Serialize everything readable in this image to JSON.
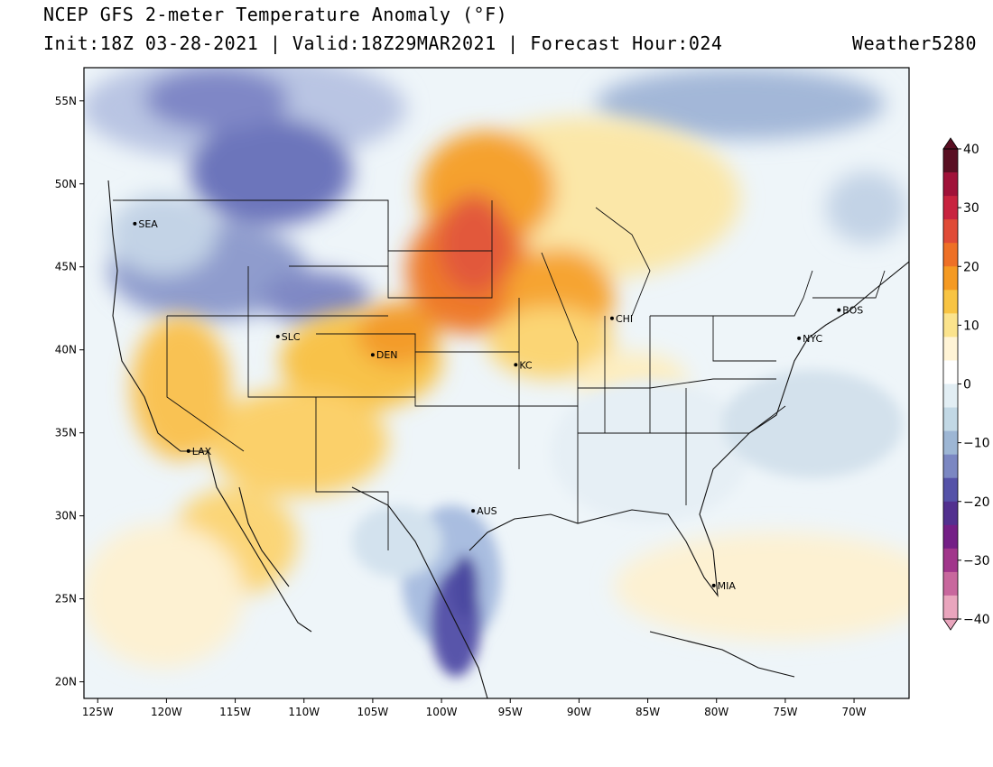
{
  "header": {
    "title": "NCEP GFS 2-meter Temperature Anomaly (°F)",
    "subtitle": "Init:18Z 03-28-2021 | Valid:18Z29MAR2021 | Forecast Hour:024",
    "brand": "Weather5280"
  },
  "map": {
    "lon_range": [
      -126,
      -66
    ],
    "lat_range": [
      19,
      57
    ],
    "lon_ticks": [
      "125W",
      "120W",
      "115W",
      "110W",
      "105W",
      "100W",
      "95W",
      "90W",
      "85W",
      "80W",
      "75W",
      "70W"
    ],
    "lat_ticks": [
      "55N",
      "50N",
      "45N",
      "40N",
      "35N",
      "30N",
      "25N",
      "20N"
    ],
    "cities": [
      {
        "label": "SEA",
        "lon": -122.3,
        "lat": 47.6
      },
      {
        "label": "SLC",
        "lon": -111.9,
        "lat": 40.8
      },
      {
        "label": "DEN",
        "lon": -105.0,
        "lat": 39.7
      },
      {
        "label": "LAX",
        "lon": -118.4,
        "lat": 33.9
      },
      {
        "label": "KC",
        "lon": -94.6,
        "lat": 39.1
      },
      {
        "label": "CHI",
        "lon": -87.6,
        "lat": 41.9
      },
      {
        "label": "NYC",
        "lon": -74.0,
        "lat": 40.7
      },
      {
        "label": "BOS",
        "lon": -71.1,
        "lat": 42.4
      },
      {
        "label": "AUS",
        "lon": -97.7,
        "lat": 30.3
      },
      {
        "label": "MIA",
        "lon": -80.2,
        "lat": 25.8
      }
    ]
  },
  "colorbar": {
    "labels": [
      "40",
      "30",
      "20",
      "10",
      "0",
      "−10",
      "−20",
      "−30",
      "−40"
    ],
    "colors": [
      "#5a0f23",
      "#a01239",
      "#c8233f",
      "#e04b37",
      "#ee7026",
      "#f59a22",
      "#f8c443",
      "#fbe38c",
      "#fff4d6",
      "#ffffff",
      "#e2eef4",
      "#c2d8e5",
      "#9db6d4",
      "#7b87c2",
      "#5552a8",
      "#52308f",
      "#741f86",
      "#a1368b",
      "#c8679d",
      "#e9a5bd"
    ]
  }
}
